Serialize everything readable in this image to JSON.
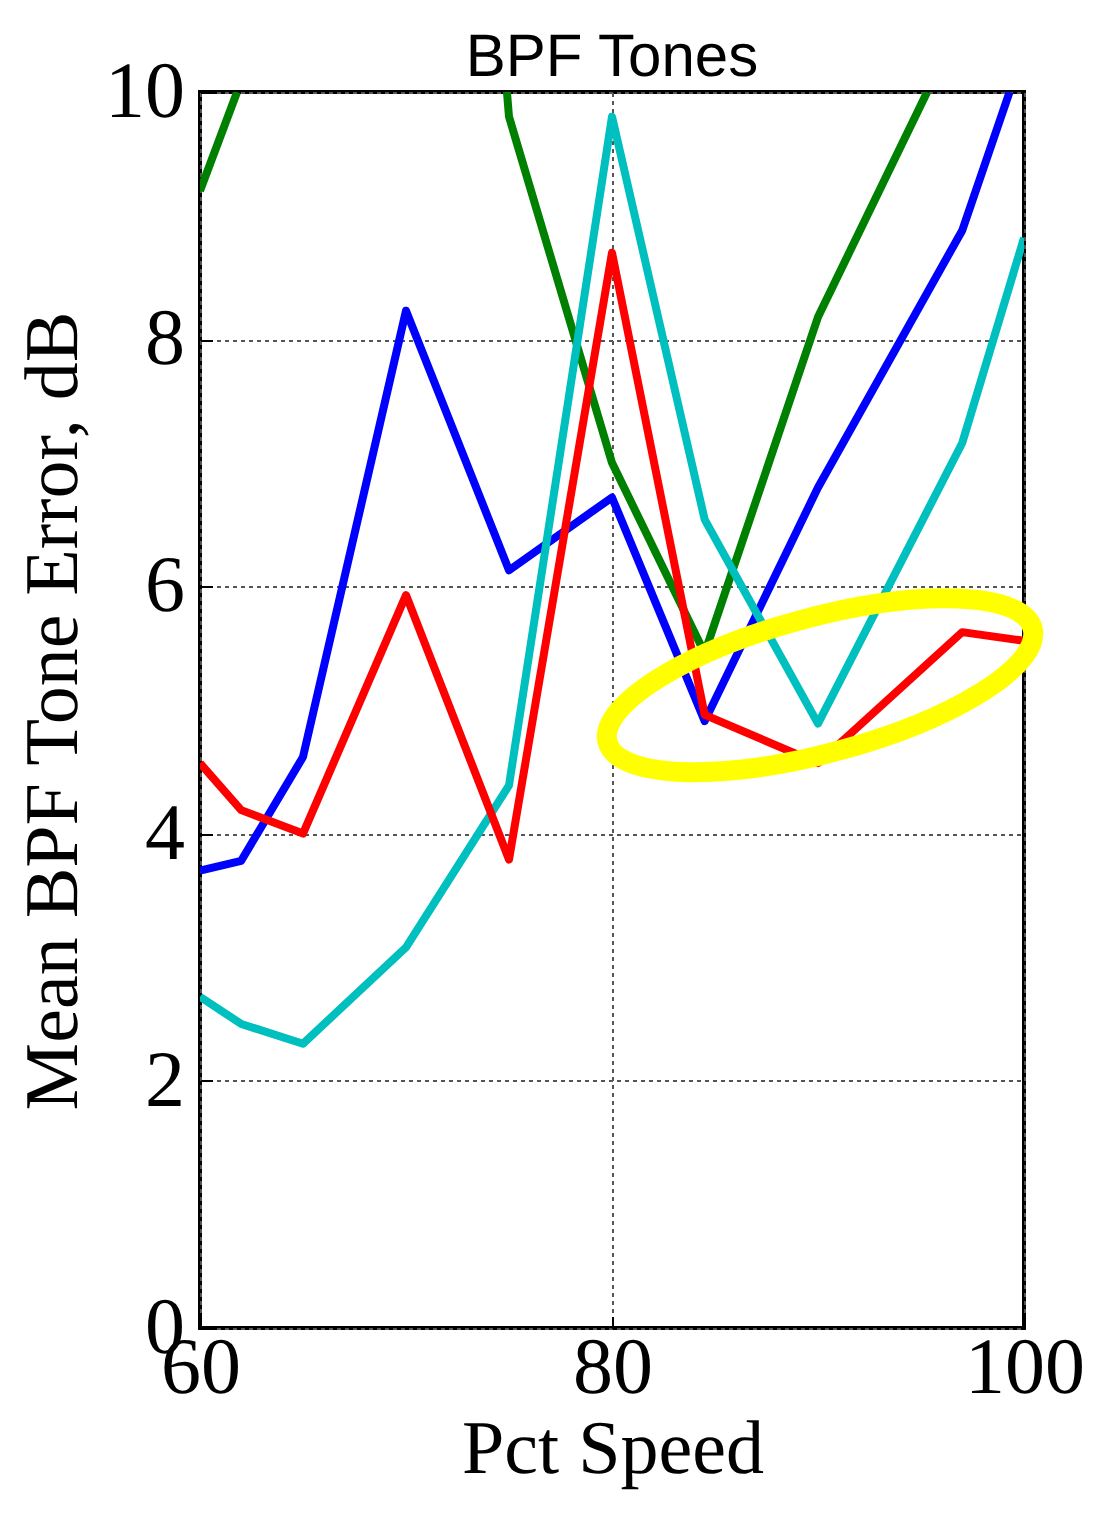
{
  "chart_data": {
    "type": "line",
    "title": "BPF Tones",
    "xlabel": "Pct Speed",
    "ylabel": "Mean BPF Tone Error, dB",
    "xlim": [
      60,
      100
    ],
    "xticks": [
      60,
      80,
      100
    ],
    "ylim": [
      0,
      10
    ],
    "yticks": [
      0,
      2,
      4,
      6,
      8,
      10
    ],
    "grid": true,
    "series": [
      {
        "color": "#008000",
        "x": [
          60,
          61.8,
          68,
          74.9,
          75,
          80,
          84.5,
          90,
          95.3
        ],
        "values": [
          9.2,
          10,
          null,
          10,
          9.8,
          7.0,
          5.46,
          8.18,
          10
        ]
      },
      {
        "color": "#0000ff",
        "x": [
          60,
          62,
          65,
          70,
          75,
          80,
          84.5,
          90,
          97,
          99.3
        ],
        "values": [
          3.7,
          3.78,
          4.62,
          8.23,
          6.13,
          6.72,
          4.91,
          6.8,
          8.88,
          10
        ]
      },
      {
        "color": "#00bfbf",
        "x": [
          60,
          62,
          65,
          70,
          75,
          80,
          84.5,
          90,
          97,
          100
        ],
        "values": [
          2.68,
          2.46,
          2.3,
          3.08,
          4.39,
          9.8,
          6.54,
          4.89,
          7.16,
          8.82
        ]
      },
      {
        "color": "#ff0000",
        "x": [
          60,
          62,
          65,
          70,
          75,
          80,
          84.5,
          90,
          97,
          100
        ],
        "values": [
          4.57,
          4.19,
          4.0,
          5.93,
          3.79,
          8.7,
          4.96,
          4.57,
          5.63,
          5.56
        ]
      }
    ]
  }
}
